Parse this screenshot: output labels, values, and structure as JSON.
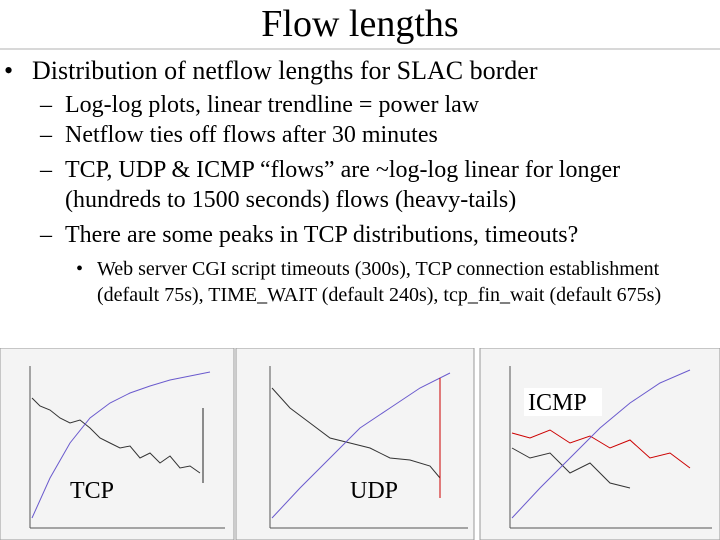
{
  "title": "Flow lengths",
  "bullet": "Distribution of netflow lengths for SLAC border",
  "sub_bullets": [
    "Log-log plots, linear trendline = power law",
    "Netflow ties off flows after 30 minutes",
    "TCP, UDP & ICMP “flows” are ~log-log linear for longer (hundreds to 1500 seconds) flows (heavy-tails)",
    "There are some peaks in TCP distributions, timeouts?"
  ],
  "sub_sub_bullet": "Web server CGI script timeouts (300s), TCP connection establishment (default 75s), TIME_WAIT (default 240s), tcp_fin_wait (default 675s)",
  "chart_labels": [
    "TCP",
    "UDP",
    "ICMP"
  ]
}
